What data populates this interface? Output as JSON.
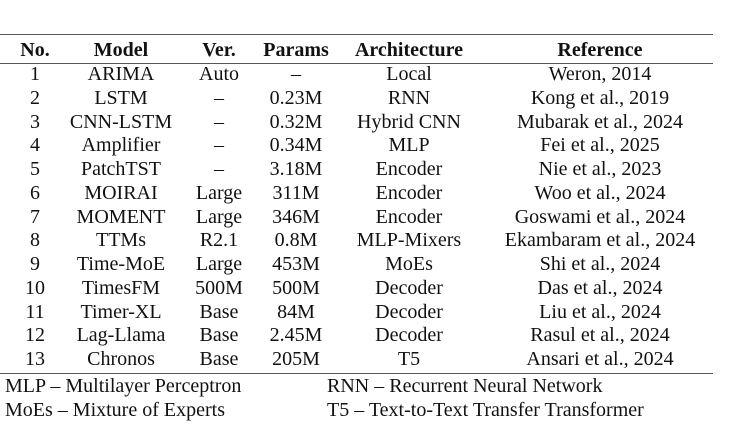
{
  "table": {
    "header": [
      "No.",
      "Model",
      "Ver.",
      "Params",
      "Architecture",
      "Reference"
    ],
    "rows": [
      [
        "1",
        "ARIMA",
        "Auto",
        "–",
        "Local",
        "Weron, 2014"
      ],
      [
        "2",
        "LSTM",
        "–",
        "0.23M",
        "RNN",
        "Kong et al., 2019"
      ],
      [
        "3",
        "CNN-LSTM",
        "–",
        "0.32M",
        "Hybrid CNN",
        "Mubarak et al., 2024"
      ],
      [
        "4",
        "Amplifier",
        "–",
        "0.34M",
        "MLP",
        "Fei et al., 2025"
      ],
      [
        "5",
        "PatchTST",
        "–",
        "3.18M",
        "Encoder",
        "Nie et al., 2023"
      ],
      [
        "6",
        "MOIRAI",
        "Large",
        "311M",
        "Encoder",
        "Woo et al., 2024"
      ],
      [
        "7",
        "MOMENT",
        "Large",
        "346M",
        "Encoder",
        "Goswami et al., 2024"
      ],
      [
        "8",
        "TTMs",
        "R2.1",
        "0.8M",
        "MLP-Mixers",
        "Ekambaram et al., 2024"
      ],
      [
        "9",
        "Time-MoE",
        "Large",
        "453M",
        "MoEs",
        "Shi et al., 2024"
      ],
      [
        "10",
        "TimesFM",
        "500M",
        "500M",
        "Decoder",
        "Das et al., 2024"
      ],
      [
        "11",
        "Timer-XL",
        "Base",
        "84M",
        "Decoder",
        "Liu et al., 2024"
      ],
      [
        "12",
        "Lag-Llama",
        "Base",
        "2.45M",
        "Decoder",
        "Rasul et al., 2024"
      ],
      [
        "13",
        "Chronos",
        "Base",
        "205M",
        "T5",
        "Ansari et al., 2024"
      ]
    ],
    "footnotes": [
      [
        "MLP – Multilayer Perceptron",
        "RNN – Recurrent Neural Network"
      ],
      [
        "MoEs – Mixture of Experts",
        "T5 – Text-to-Text Transfer Transformer"
      ]
    ]
  }
}
